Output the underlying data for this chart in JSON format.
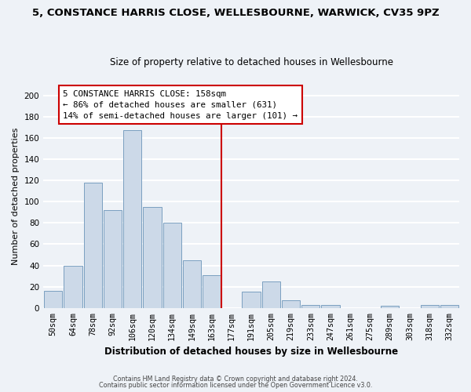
{
  "title": "5, CONSTANCE HARRIS CLOSE, WELLESBOURNE, WARWICK, CV35 9PZ",
  "subtitle": "Size of property relative to detached houses in Wellesbourne",
  "xlabel": "Distribution of detached houses by size in Wellesbourne",
  "ylabel": "Number of detached properties",
  "bar_color": "#ccd9e8",
  "bar_edge_color": "#7a9fc0",
  "categories": [
    "50sqm",
    "64sqm",
    "78sqm",
    "92sqm",
    "106sqm",
    "120sqm",
    "134sqm",
    "149sqm",
    "163sqm",
    "177sqm",
    "191sqm",
    "205sqm",
    "219sqm",
    "233sqm",
    "247sqm",
    "261sqm",
    "275sqm",
    "289sqm",
    "303sqm",
    "318sqm",
    "332sqm"
  ],
  "values": [
    16,
    40,
    118,
    92,
    167,
    95,
    80,
    45,
    31,
    0,
    15,
    25,
    7,
    3,
    3,
    0,
    0,
    2,
    0,
    3,
    3
  ],
  "ylim": [
    0,
    210
  ],
  "yticks": [
    0,
    20,
    40,
    60,
    80,
    100,
    120,
    140,
    160,
    180,
    200
  ],
  "property_line_x": 8.5,
  "property_line_color": "#cc0000",
  "annotation_line1": "5 CONSTANCE HARRIS CLOSE: 158sqm",
  "annotation_line2": "← 86% of detached houses are smaller (631)",
  "annotation_line3": "14% of semi-detached houses are larger (101) →",
  "footer_line1": "Contains HM Land Registry data © Crown copyright and database right 2024.",
  "footer_line2": "Contains public sector information licensed under the Open Government Licence v3.0.",
  "background_color": "#eef2f7",
  "grid_color": "#ffffff",
  "title_fontsize": 9.5,
  "subtitle_fontsize": 8.5
}
